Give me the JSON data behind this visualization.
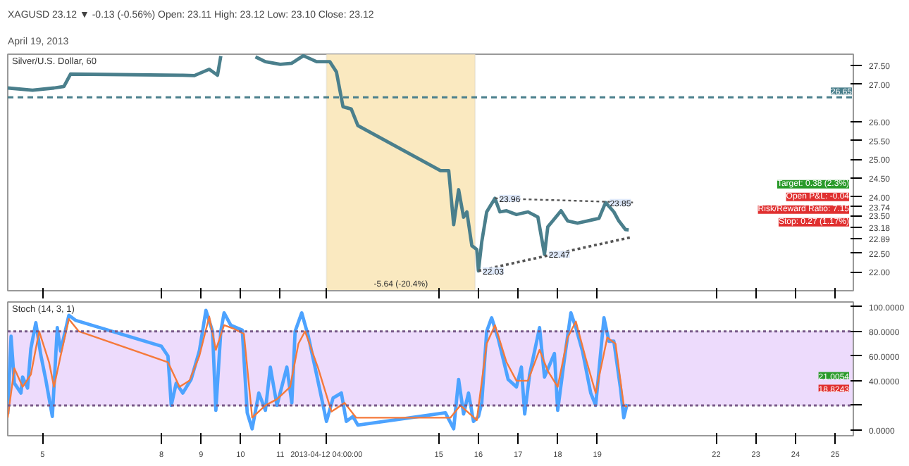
{
  "chart_data": [
    {
      "type": "line",
      "title": "XAGUSD 23.12 ▼ -0.13 (-0.56%) Open: 23.11 High: 23.12 Low: 23.10 Close: 23.12",
      "subtitle": "April 19, 2013",
      "tick_labels": "y",
      "grid": false,
      "xlim": [
        "2013-04-04T03:00",
        "2013-04-25T11:00"
      ],
      "ylim": [
        21.5,
        27.8
      ],
      "xticks": [
        {
          "value": "2013-04-05",
          "label": null
        },
        {
          "value": "2013-04-08",
          "label": null
        },
        {
          "value": "2013-04-09",
          "label": null
        },
        {
          "value": "2013-04-10",
          "label": null
        },
        {
          "value": "2013-04-11",
          "label": null
        },
        {
          "value": "2013-04-12T04:00",
          "label": null
        },
        {
          "value": "2013-04-15",
          "label": null
        },
        {
          "value": "2013-04-16",
          "label": null
        },
        {
          "value": "2013-04-17",
          "label": null
        },
        {
          "value": "2013-04-18",
          "label": null
        },
        {
          "value": "2013-04-19",
          "label": null
        },
        {
          "value": "2013-04-22",
          "label": null
        },
        {
          "value": "2013-04-23",
          "label": null
        },
        {
          "value": "2013-04-24",
          "label": null
        },
        {
          "value": "2013-04-25",
          "label": null
        }
      ],
      "yticks": [
        {
          "value": 22,
          "label": "22.00"
        },
        {
          "value": 22.5,
          "label": "22.50"
        },
        22.89,
        23.18,
        {
          "value": 23.5,
          "label": "23.50"
        },
        23.74,
        {
          "value": 24,
          "label": "24.00"
        },
        {
          "value": 24.5,
          "label": "24.50"
        },
        {
          "value": 25,
          "label": "25.00"
        },
        {
          "value": 25.5,
          "label": "25.50"
        },
        {
          "value": 26,
          "label": "26.00"
        },
        {
          "value": 27,
          "label": "27.00"
        },
        {
          "value": 27.5,
          "label": "27.50"
        }
      ],
      "series": [
        {
          "color": "#4a7f8c",
          "x": [
            "2013-04-04T03:00",
            "2013-04-04T18:00",
            "2013-04-05T07:00",
            "2013-04-05T13:00",
            "2013-04-05T17:00",
            "2013-04-08T13:00",
            "2013-04-08T20:00",
            "2013-04-09T05:00",
            "2013-04-09T10:00",
            "2013-04-09T12:00",
            "2013-04-09T14:00",
            "2013-04-10T09:00",
            "2013-04-10T15:00",
            "2013-04-11T00:00",
            "2013-04-11T07:00",
            "2013-04-11T14:00",
            "2013-04-11T22:00",
            "2013-04-12T06:00",
            "2013-04-12T10:00",
            "2013-04-12T14:00",
            "2013-04-12T19:00",
            "2013-04-12T23:00",
            "2013-04-15T01:00",
            "2013-04-15T06:00",
            "2013-04-15T09:00",
            "2013-04-15T12:00",
            "2013-04-15T15:00",
            "2013-04-15T17:00",
            "2013-04-15T20:00",
            "2013-04-15T23:00",
            "2013-04-16T00:00",
            "2013-04-16T02:00",
            "2013-04-16T05:00",
            "2013-04-16T10:00",
            "2013-04-16T13:00",
            "2013-04-16T17:00",
            "2013-04-16T23:00",
            "2013-04-17T06:00",
            "2013-04-17T12:00",
            "2013-04-17T16:00",
            "2013-04-17T18:00",
            "2013-04-17T21:00",
            "2013-04-18T02:00",
            "2013-04-18T06:00",
            "2013-04-18T12:00",
            "2013-04-18T18:00",
            "2013-04-19T01:00",
            "2013-04-19T05:00",
            "2013-04-19T10:00",
            "2013-04-19T13:00",
            "2013-04-19T17:00",
            "2013-04-19T19:00"
          ],
          "values": [
            26.9,
            26.84,
            26.9,
            26.94,
            27.27,
            27.24,
            27.23,
            27.4,
            27.24,
            27.75,
            null,
            27.73,
            27.6,
            27.53,
            27.56,
            27.76,
            27.6,
            27.6,
            27.33,
            26.4,
            26.34,
            25.9,
            24.7,
            24.7,
            23.26,
            24.19,
            23.46,
            23.6,
            22.7,
            22.6,
            22.03,
            22.8,
            23.6,
            23.96,
            23.6,
            23.63,
            23.53,
            23.6,
            23.46,
            22.47,
            23.2,
            23.36,
            23.63,
            23.36,
            23.3,
            23.36,
            23.43,
            23.85,
            23.6,
            23.36,
            23.13,
            23.12
          ]
        },
        {
          "color": "#555555",
          "line_style": "dotted",
          "x": [
            "2013-04-16T00:00",
            "2013-04-19T20:00"
          ],
          "values": [
            22.03,
            22.92
          ]
        },
        {
          "color": "#555555",
          "line_style": "dotted",
          "x": [
            "2013-04-16T10:00",
            "2013-04-19T22:00"
          ],
          "values": [
            23.96,
            23.85
          ]
        }
      ],
      "ref_lines": [
        {
          "axis": "y",
          "value": 26.65,
          "label": "26.65",
          "color": "#4a7f8c",
          "line_style": "dashed"
        }
      ],
      "bands": [
        {
          "axis": "x",
          "from": "2013-04-12T04:00",
          "to": "2013-04-15T22:00",
          "label": "-5.64 (-20.4%)",
          "color": "#f9e4b0"
        }
      ],
      "annotations": [
        "Silver/U.S. Dollar, 60",
        {
          "text": "23.96",
          "x": "2013-04-16T10:00",
          "y": 23.96
        },
        {
          "text": "23.85",
          "x": "2013-04-19T05:00",
          "y": 23.85
        },
        {
          "text": "22.03",
          "x": "2013-04-16T00:00",
          "y": 22.03
        },
        {
          "text": "22.47",
          "x": "2013-04-17T16:00",
          "y": 22.47
        },
        "Target: 0.38 (2.3%)",
        "Open P&L: -0.04",
        "Risk/Reward Ratio: 7.15",
        "Stop: 0.27 (1.17%)"
      ]
    },
    {
      "type": "line",
      "grid": false,
      "xlim": [
        "2013-04-04T03:00",
        "2013-04-25T11:00"
      ],
      "ylim": [
        -4.6,
        103.8
      ],
      "xticks": [
        {
          "value": "2013-04-05",
          "label": "5"
        },
        {
          "value": "2013-04-08",
          "label": "8"
        },
        {
          "value": "2013-04-09",
          "label": "9"
        },
        {
          "value": "2013-04-10",
          "label": "10"
        },
        {
          "value": "2013-04-11",
          "label": "11"
        },
        {
          "value": "2013-04-12T04:00",
          "label": "2013-04-12 04:00:00"
        },
        {
          "value": "2013-04-15",
          "label": "15"
        },
        {
          "value": "2013-04-16",
          "label": "16"
        },
        {
          "value": "2013-04-17",
          "label": "17"
        },
        {
          "value": "2013-04-18",
          "label": "18"
        },
        {
          "value": "2013-04-19",
          "label": "19"
        },
        {
          "value": "2013-04-22",
          "label": "22"
        },
        {
          "value": "2013-04-23",
          "label": "23"
        },
        {
          "value": "2013-04-24",
          "label": "24"
        },
        {
          "value": "2013-04-25",
          "label": "25"
        }
      ],
      "yticks": [
        {
          "value": 0,
          "label": "0.0000"
        },
        {
          "value": 20,
          "label": null
        },
        {
          "value": 40,
          "label": "40.0000"
        },
        {
          "value": 60,
          "label": "60.0000"
        },
        {
          "value": 80,
          "label": "80.0000"
        },
        {
          "value": 100,
          "label": "100.0000"
        }
      ],
      "series": [
        {
          "color": "#4da3ff",
          "x": [
            "2013-04-04T03:00",
            "2013-04-04T05:00",
            "2013-04-04T07:00",
            "2013-04-04T11:00",
            "2013-04-04T12:00",
            "2013-04-04T15:00",
            "2013-04-04T17:00",
            "2013-04-04T20:00",
            "2013-04-04T23:00",
            "2013-04-05T02:00",
            "2013-04-05T06:00",
            "2013-04-05T09:00",
            "2013-04-05T11:00",
            "2013-04-05T16:00",
            "2013-04-05T20:00",
            "2013-04-08T00:00",
            "2013-04-08T04:00",
            "2013-04-08T06:00",
            "2013-04-08T09:00",
            "2013-04-08T13:00",
            "2013-04-08T18:00",
            "2013-04-08T23:00",
            "2013-04-09T03:00",
            "2013-04-09T07:00",
            "2013-04-09T09:00",
            "2013-04-09T12:00",
            "2013-04-09T14:00",
            "2013-04-09T18:00",
            "2013-04-10T01:00",
            "2013-04-10T04:00",
            "2013-04-10T07:00",
            "2013-04-10T11:00",
            "2013-04-10T15:00",
            "2013-04-10T18:00",
            "2013-04-10T22:00",
            "2013-04-11T04:00",
            "2013-04-11T07:00",
            "2013-04-11T09:00",
            "2013-04-11T13:00",
            "2013-04-11T17:00",
            "2013-04-11T22:00",
            "2013-04-12T04:00",
            "2013-04-12T08:00",
            "2013-04-12T13:00",
            "2013-04-12T16:00",
            "2013-04-12T20:00",
            "2013-04-12T23:00",
            "2013-04-15T04:00",
            "2013-04-15T09:00",
            "2013-04-15T12:00",
            "2013-04-15T15:00",
            "2013-04-15T18:00",
            "2013-04-15T21:00",
            "2013-04-16T00:00",
            "2013-04-16T02:00",
            "2013-04-16T05:00",
            "2013-04-16T08:00",
            "2013-04-16T12:00",
            "2013-04-16T18:00",
            "2013-04-16T23:00",
            "2013-04-17T02:00",
            "2013-04-17T04:00",
            "2013-04-17T07:00",
            "2013-04-17T13:00",
            "2013-04-17T16:00",
            "2013-04-17T22:00",
            "2013-04-18T00:00",
            "2013-04-18T04:00",
            "2013-04-18T08:00",
            "2013-04-18T11:00",
            "2013-04-18T15:00",
            "2013-04-18T20:00",
            "2013-04-18T23:00",
            "2013-04-19T04:00",
            "2013-04-19T07:00",
            "2013-04-19T10:00",
            "2013-04-19T14:00",
            "2013-04-19T16:00",
            "2013-04-19T18:00"
          ],
          "values": [
            13,
            76,
            38,
            30,
            43,
            34,
            66,
            87,
            61,
            41,
            11,
            83,
            64,
            93,
            89,
            68,
            60,
            20,
            38,
            30,
            41,
            64,
            97,
            80,
            16,
            80,
            95,
            85,
            81,
            14,
            1,
            30,
            16,
            51,
            20,
            51,
            22,
            80,
            95,
            76,
            45,
            7,
            26,
            30,
            7,
            11,
            4,
            14,
            1,
            41,
            13,
            30,
            7,
            11,
            22,
            80,
            91,
            74,
            41,
            35,
            51,
            13,
            45,
            83,
            43,
            62,
            16,
            57,
            95,
            83,
            64,
            30,
            20,
            91,
            72,
            72,
            34,
            10,
            21.0054
          ]
        },
        {
          "color": "#f5793a",
          "x": [
            "2013-04-04T03:00",
            "2013-04-04T07:00",
            "2013-04-04T12:00",
            "2013-04-04T17:00",
            "2013-04-04T22:00",
            "2013-04-05T04:00",
            "2013-04-05T07:00",
            "2013-04-05T11:00",
            "2013-04-05T16:00",
            "2013-04-05T22:00",
            "2013-04-08T04:00",
            "2013-04-08T11:00",
            "2013-04-08T17:00",
            "2013-04-08T23:00",
            "2013-04-09T05:00",
            "2013-04-09T09:00",
            "2013-04-09T14:00",
            "2013-04-09T20:00",
            "2013-04-10T02:00",
            "2013-04-10T07:00",
            "2013-04-10T15:00",
            "2013-04-10T22:00",
            "2013-04-11T06:00",
            "2013-04-11T11:00",
            "2013-04-11T15:00",
            "2013-04-11T23:00",
            "2013-04-12T07:00",
            "2013-04-12T15:00",
            "2013-04-12T22:00",
            "2013-04-15T07:00",
            "2013-04-15T13:00",
            "2013-04-15T23:00",
            "2013-04-16T05:00",
            "2013-04-16T10:00",
            "2013-04-16T17:00",
            "2013-04-16T23:00",
            "2013-04-17T06:00",
            "2013-04-17T13:00",
            "2013-04-17T18:00",
            "2013-04-18T00:00",
            "2013-04-18T06:00",
            "2013-04-18T11:00",
            "2013-04-18T17:00",
            "2013-04-18T23:00",
            "2013-04-19T06:00",
            "2013-04-19T11:00",
            "2013-04-19T16:00",
            "2013-04-19T18:00"
          ],
          "values": [
            10,
            50,
            35,
            45,
            80,
            55,
            35,
            60,
            90,
            80,
            55,
            35,
            40,
            60,
            92,
            65,
            85,
            82,
            78,
            10,
            20,
            25,
            35,
            70,
            80,
            50,
            15,
            22,
            10,
            10,
            20,
            8,
            70,
            85,
            55,
            40,
            40,
            65,
            48,
            35,
            75,
            88,
            58,
            30,
            75,
            70,
            20,
            18.8243
          ]
        }
      ],
      "ref_lines": [
        {
          "axis": "y",
          "value": 20,
          "color": "#7a5a8a",
          "line_style": "dotted"
        },
        {
          "axis": "y",
          "value": 80,
          "color": "#7a5a8a",
          "line_style": "dotted"
        }
      ],
      "bands": [
        {
          "axis": "y",
          "from": 20,
          "to": 80,
          "color": "#e9d2fb"
        }
      ],
      "annotations": [
        "Stoch (14, 3, 1)",
        "21.0054",
        "18.8243"
      ]
    }
  ]
}
